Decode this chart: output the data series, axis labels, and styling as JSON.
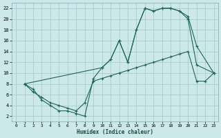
{
  "xlabel": "Humidex (Indice chaleur)",
  "background_color": "#cce8e8",
  "grid_color": "#aacccc",
  "line_color": "#1a6655",
  "xlim": [
    -0.5,
    23.5
  ],
  "ylim": [
    1,
    23
  ],
  "xticks": [
    0,
    1,
    2,
    3,
    4,
    5,
    6,
    7,
    8,
    9,
    10,
    11,
    12,
    13,
    14,
    15,
    16,
    17,
    18,
    19,
    20,
    21,
    22,
    23
  ],
  "yticks": [
    2,
    4,
    6,
    8,
    10,
    12,
    14,
    16,
    18,
    20,
    22
  ],
  "line1_x": [
    1,
    2,
    3,
    4,
    5,
    6,
    7,
    8,
    9,
    10,
    11,
    12,
    13,
    14,
    15,
    16,
    17,
    18,
    19,
    20,
    21,
    23
  ],
  "line1_y": [
    8,
    7,
    5,
    4,
    3,
    3,
    2.5,
    2,
    9,
    11,
    12.5,
    16,
    12,
    18,
    22,
    21.5,
    22,
    22,
    21.5,
    20.5,
    15,
    10
  ],
  "line2_x": [
    1,
    10,
    11,
    12,
    13,
    14,
    15,
    16,
    17,
    18,
    19,
    20,
    21,
    23
  ],
  "line2_y": [
    8,
    11,
    12.5,
    16,
    12,
    18,
    22,
    21.5,
    22,
    22,
    21.5,
    20,
    11.5,
    10
  ],
  "line3_x": [
    1,
    2,
    3,
    4,
    5,
    6,
    7,
    8,
    9,
    10,
    11,
    12,
    13,
    14,
    15,
    16,
    17,
    18,
    19,
    20,
    21,
    22,
    23
  ],
  "line3_y": [
    8,
    6.5,
    5.5,
    4.5,
    4,
    3.5,
    3,
    4.5,
    8.5,
    9,
    9.5,
    10,
    10.5,
    11,
    11.5,
    12,
    12.5,
    13,
    13.5,
    14,
    8.5,
    8.5,
    10
  ],
  "marker": "+"
}
